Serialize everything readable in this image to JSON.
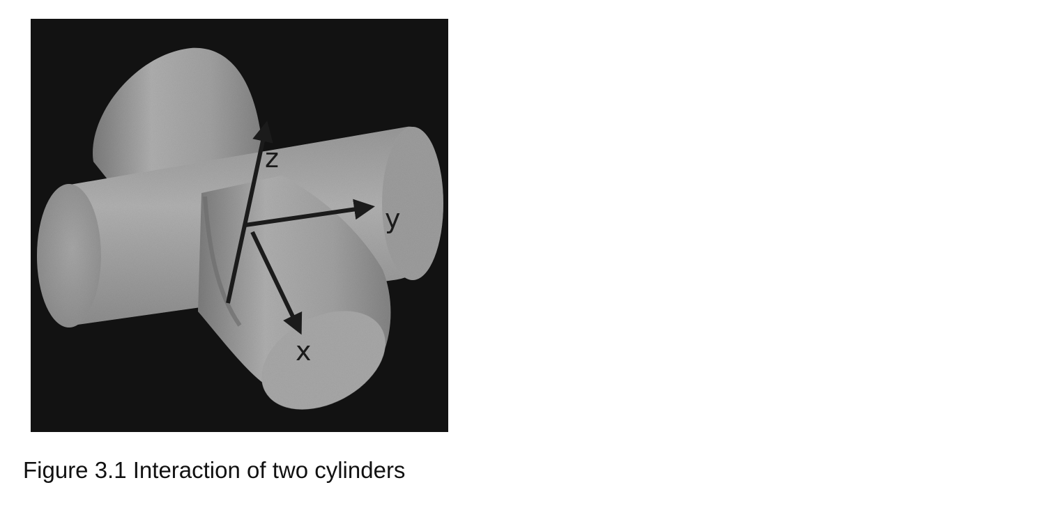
{
  "figure": {
    "caption": "Figure 3.1 Interaction of two cylinders",
    "axis_labels": {
      "z": "z",
      "y": "y",
      "x": "x"
    },
    "colors": {
      "background": "#121212",
      "cylinder_surface": "#a8a8a8",
      "arrow": "#1b1b1b"
    }
  }
}
